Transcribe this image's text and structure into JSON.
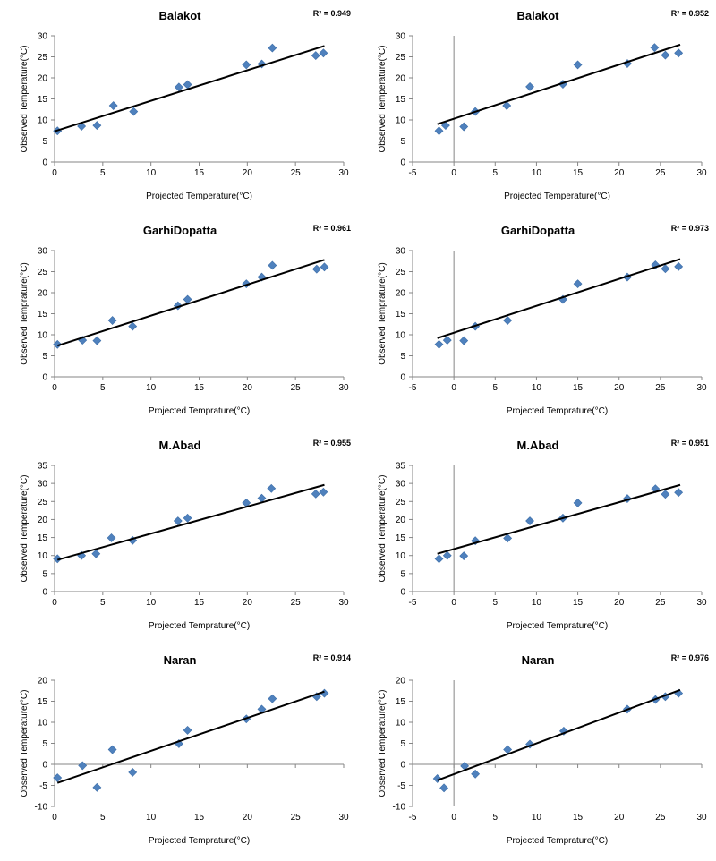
{
  "chart_data": [
    {
      "type": "scatter",
      "title": "Balakot",
      "r2_label": "R² = 0.949",
      "xlabel": "Projected Temperature(°C)",
      "ylabel": "Observed Temperature(°C)",
      "xlim": [
        0,
        30
      ],
      "ylim": [
        0,
        30
      ],
      "xstep": 5,
      "ystep": 5,
      "x": [
        0.3,
        2.8,
        4.4,
        6.1,
        8.2,
        12.9,
        13.8,
        19.9,
        21.5,
        22.6,
        27.1,
        27.9
      ],
      "y": [
        7.4,
        8.5,
        8.7,
        13.4,
        12.0,
        17.8,
        18.4,
        23.1,
        23.3,
        27.1,
        25.3,
        25.9
      ],
      "trendline": {
        "x": [
          0,
          28
        ],
        "y": [
          7.3,
          27.6
        ]
      },
      "marker_color": "#4F81BD"
    },
    {
      "type": "scatter",
      "title": "Balakot",
      "r2_label": "R² = 0.952",
      "xlabel": "Projected Temperature(°C)",
      "ylabel": "Observed Temperature(°C)",
      "xlim": [
        -5,
        30
      ],
      "ylim": [
        0,
        30
      ],
      "xstep": 5,
      "ystep": 5,
      "x": [
        -1.8,
        -1.0,
        1.2,
        2.6,
        6.4,
        9.2,
        13.2,
        15.0,
        21.0,
        24.3,
        25.6,
        27.2
      ],
      "y": [
        7.4,
        8.7,
        8.4,
        12.0,
        13.4,
        17.9,
        18.5,
        23.1,
        23.4,
        27.2,
        25.4,
        25.9
      ],
      "trendline": {
        "x": [
          -2,
          27.4
        ],
        "y": [
          9.0,
          27.9
        ]
      },
      "marker_color": "#4F81BD"
    },
    {
      "type": "scatter",
      "title": "GarhiDopatta",
      "r2_label": "R² = 0.961",
      "xlabel": "Projected Temprature(°C)",
      "ylabel": "Observed Temprature(°C)",
      "xlim": [
        0,
        30
      ],
      "ylim": [
        0,
        30
      ],
      "xstep": 5,
      "ystep": 5,
      "x": [
        0.3,
        2.9,
        4.4,
        6.0,
        8.1,
        12.8,
        13.8,
        19.9,
        21.5,
        22.6,
        27.2,
        28.0
      ],
      "y": [
        7.7,
        8.7,
        8.6,
        13.4,
        12.0,
        16.9,
        18.4,
        22.1,
        23.7,
        26.5,
        25.6,
        26.1
      ],
      "trendline": {
        "x": [
          0.3,
          28
        ],
        "y": [
          7.4,
          27.8
        ]
      },
      "marker_color": "#4F81BD"
    },
    {
      "type": "scatter",
      "title": "GarhiDopatta",
      "r2_label": "R² = 0.973",
      "xlabel": "Projected Temprature(°C)",
      "ylabel": "Observed Temprature(°C)",
      "xlim": [
        -5,
        30
      ],
      "ylim": [
        0,
        30
      ],
      "xstep": 5,
      "ystep": 5,
      "x": [
        -1.8,
        -0.8,
        1.2,
        2.6,
        6.5,
        13.2,
        15.0,
        21.0,
        24.4,
        25.6,
        27.2
      ],
      "y": [
        7.7,
        8.7,
        8.6,
        12.0,
        13.4,
        18.4,
        22.1,
        23.7,
        26.6,
        25.7,
        26.2
      ],
      "trendline": {
        "x": [
          -2,
          27.4
        ],
        "y": [
          9.2,
          28.0
        ]
      },
      "marker_color": "#4F81BD"
    },
    {
      "type": "scatter",
      "title": "M.Abad",
      "r2_label": "R² = 0.955",
      "xlabel": "Projected Temprature(°C)",
      "ylabel": "Observed Temperature(°C)",
      "xlim": [
        0,
        30
      ],
      "ylim": [
        0,
        35
      ],
      "xstep": 5,
      "ystep": 5,
      "x": [
        0.3,
        2.8,
        4.3,
        5.9,
        8.1,
        12.8,
        13.8,
        19.9,
        21.5,
        22.5,
        27.1,
        27.9
      ],
      "y": [
        9.1,
        10.0,
        10.5,
        14.9,
        14.2,
        19.6,
        20.4,
        24.6,
        25.9,
        28.6,
        27.1,
        27.6
      ],
      "trendline": {
        "x": [
          0.3,
          28
        ],
        "y": [
          8.8,
          29.6
        ]
      },
      "marker_color": "#4F81BD"
    },
    {
      "type": "scatter",
      "title": "M.Abad",
      "r2_label": "R² = 0.951",
      "xlabel": "Projected Temprature(°C)",
      "ylabel": "Observed Temperature(°C)",
      "xlim": [
        -5,
        30
      ],
      "ylim": [
        0,
        35
      ],
      "xstep": 5,
      "ystep": 5,
      "x": [
        -1.8,
        -0.8,
        1.2,
        2.6,
        6.5,
        9.2,
        13.2,
        15.0,
        21.0,
        24.4,
        25.6,
        27.2
      ],
      "y": [
        9.1,
        10.0,
        9.9,
        14.1,
        14.8,
        19.6,
        20.4,
        24.6,
        25.8,
        28.5,
        27.0,
        27.5
      ],
      "trendline": {
        "x": [
          -2,
          27.4
        ],
        "y": [
          10.5,
          29.6
        ]
      },
      "marker_color": "#4F81BD"
    },
    {
      "type": "scatter",
      "title": "Naran",
      "r2_label": "R² = 0.914",
      "xlabel": "Projected Temprature(°C)",
      "ylabel": "Observed Temperature(°C)",
      "xlim": [
        0,
        30
      ],
      "ylim": [
        -10,
        20
      ],
      "xstep": 5,
      "ystep": 5,
      "x": [
        0.3,
        2.9,
        4.4,
        6.0,
        8.1,
        12.9,
        13.8,
        19.9,
        21.5,
        22.6,
        27.2,
        28.0
      ],
      "y": [
        -3.2,
        -0.3,
        -5.5,
        3.5,
        -1.9,
        4.9,
        8.1,
        10.8,
        13.1,
        15.6,
        16.1,
        16.9
      ],
      "trendline": {
        "x": [
          0.3,
          28
        ],
        "y": [
          -4.4,
          17.3
        ]
      },
      "marker_color": "#4F81BD"
    },
    {
      "type": "scatter",
      "title": "Naran",
      "r2_label": "R² = 0.976",
      "xlabel": "Projected Temprature(°C)",
      "ylabel": "Observed Temperature(°C)",
      "xlim": [
        -5,
        30
      ],
      "ylim": [
        -10,
        20
      ],
      "xstep": 5,
      "ystep": 5,
      "x": [
        -2.0,
        -1.2,
        1.3,
        2.6,
        6.5,
        9.2,
        13.3,
        21.0,
        24.4,
        25.6,
        27.2
      ],
      "y": [
        -3.4,
        -5.6,
        -0.4,
        -2.3,
        3.5,
        4.8,
        7.9,
        13.1,
        15.4,
        16.1,
        16.9
      ],
      "trendline": {
        "x": [
          -2,
          27.4
        ],
        "y": [
          -3.8,
          17.7
        ]
      },
      "marker_color": "#4F81BD"
    }
  ]
}
